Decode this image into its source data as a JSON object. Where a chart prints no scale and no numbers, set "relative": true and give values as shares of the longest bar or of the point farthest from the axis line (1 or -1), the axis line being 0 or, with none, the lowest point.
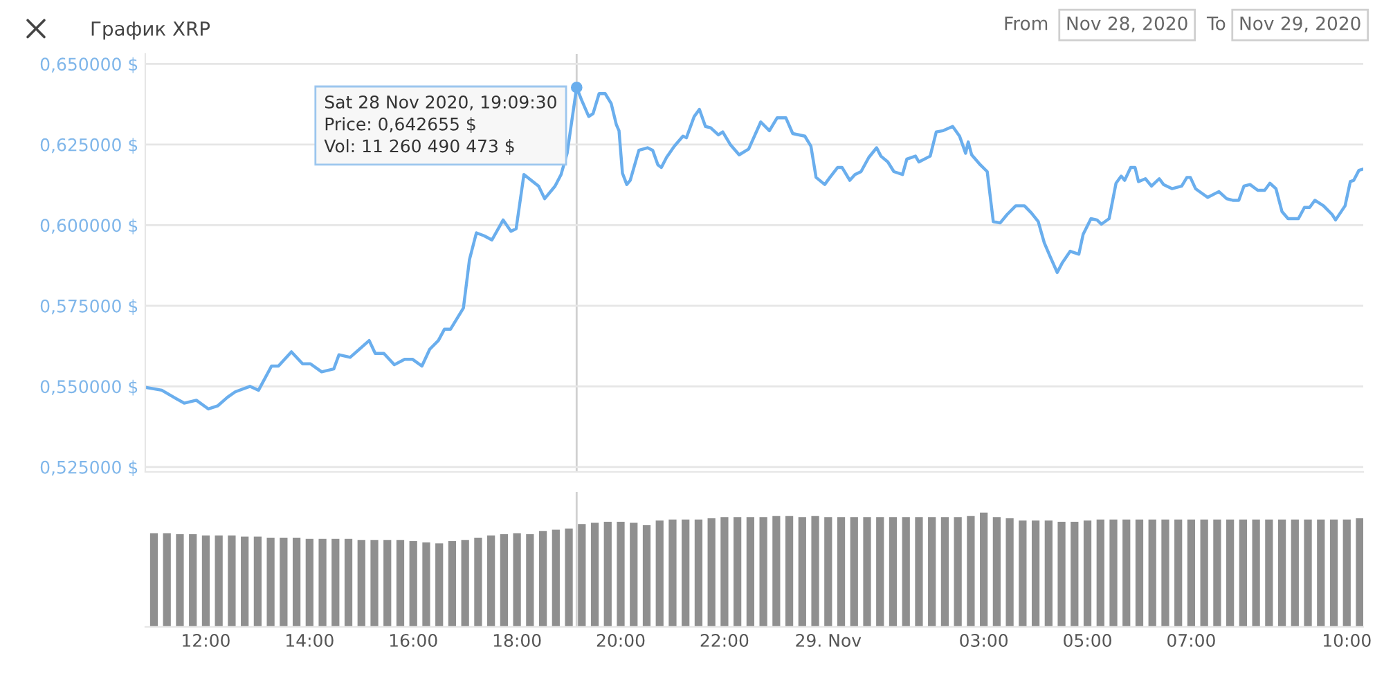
{
  "chart_data": [
    {
      "type": "line",
      "title": "График XRP",
      "annotations": [
        "From",
        "Nov 28, 2020",
        "To",
        "Nov 29, 2020",
        {
          "text": "Sat 28 Nov 2020, 19:09:30\nPrice: 0,642655 $\nVol: 11 260 490 473 $",
          "x": "2020-11-28T19:09",
          "y": 0.6427
        }
      ],
      "series": [
        {
          "color": "#6aaeed",
          "x": [
            "2020-11-28T10:50",
            "2020-11-28T11:09",
            "2020-11-28T11:23",
            "2020-11-28T11:35",
            "2020-11-28T11:49",
            "2020-11-28T12:03",
            "2020-11-28T12:14",
            "2020-11-28T12:25",
            "2020-11-28T12:34",
            "2020-11-28T12:51",
            "2020-11-28T13:01",
            "2020-11-28T13:16",
            "2020-11-28T13:24",
            "2020-11-28T13:39",
            "2020-11-28T13:52",
            "2020-11-28T14:01",
            "2020-11-28T14:14",
            "2020-11-28T14:28",
            "2020-11-28T14:34",
            "2020-11-28T14:47",
            "2020-11-28T15:09",
            "2020-11-28T15:16",
            "2020-11-28T15:26",
            "2020-11-28T15:38",
            "2020-11-28T15:50",
            "2020-11-28T15:59",
            "2020-11-28T16:10",
            "2020-11-28T16:19",
            "2020-11-28T16:29",
            "2020-11-28T16:36",
            "2020-11-28T16:43",
            "2020-11-28T16:58",
            "2020-11-28T17:05",
            "2020-11-28T17:13",
            "2020-11-28T17:22",
            "2020-11-28T17:31",
            "2020-11-28T17:44",
            "2020-11-28T17:53",
            "2020-11-28T17:59",
            "2020-11-28T18:08",
            "2020-11-28T18:25",
            "2020-11-28T18:32",
            "2020-11-28T18:44",
            "2020-11-28T18:51",
            "2020-11-28T18:58",
            "2020-11-28T19:09",
            "2020-11-28T19:15",
            "2020-11-28T19:23",
            "2020-11-28T19:28",
            "2020-11-28T19:35",
            "2020-11-28T19:42",
            "2020-11-28T19:49",
            "2020-11-28T19:55",
            "2020-11-28T19:58",
            "2020-11-28T20:02",
            "2020-11-28T20:07",
            "2020-11-28T20:11",
            "2020-11-28T20:21",
            "2020-11-28T20:31",
            "2020-11-28T20:37",
            "2020-11-28T20:43",
            "2020-11-28T20:47",
            "2020-11-28T20:53",
            "2020-11-28T21:02",
            "2020-11-28T21:12",
            "2020-11-28T21:16",
            "2020-11-28T21:25",
            "2020-11-28T21:31",
            "2020-11-28T21:38",
            "2020-11-28T21:44",
            "2020-11-28T21:53",
            "2020-11-28T21:58",
            "2020-11-28T22:07",
            "2020-11-28T22:17",
            "2020-11-28T22:28",
            "2020-11-28T22:42",
            "2020-11-28T22:52",
            "2020-11-28T23:01",
            "2020-11-28T23:11",
            "2020-11-28T23:19",
            "2020-11-28T23:33",
            "2020-11-28T23:40",
            "2020-11-28T23:46",
            "2020-11-28T23:56",
            "2020-11-29T00:02",
            "2020-11-29T00:11",
            "2020-11-29T00:16",
            "2020-11-29T00:25",
            "2020-11-29T00:31",
            "2020-11-29T00:38",
            "2020-11-29T00:47",
            "2020-11-29T00:56",
            "2020-11-29T01:01",
            "2020-11-29T01:09",
            "2020-11-29T01:16",
            "2020-11-29T01:26",
            "2020-11-29T01:31",
            "2020-11-29T01:41",
            "2020-11-29T01:45",
            "2020-11-29T01:58",
            "2020-11-29T02:05",
            "2020-11-29T02:13",
            "2020-11-29T02:24",
            "2020-11-29T02:32",
            "2020-11-29T02:39",
            "2020-11-29T02:42",
            "2020-11-29T02:46",
            "2020-11-29T02:56",
            "2020-11-29T03:04",
            "2020-11-29T03:11",
            "2020-11-29T03:19",
            "2020-11-29T03:27",
            "2020-11-29T03:37",
            "2020-11-29T03:47",
            "2020-11-29T03:55",
            "2020-11-29T04:03",
            "2020-11-29T04:10",
            "2020-11-29T04:17",
            "2020-11-29T04:25",
            "2020-11-29T04:31",
            "2020-11-29T04:40",
            "2020-11-29T04:50",
            "2020-11-29T04:55",
            "2020-11-29T05:04",
            "2020-11-29T05:11",
            "2020-11-29T05:16",
            "2020-11-29T05:25",
            "2020-11-29T05:33",
            "2020-11-29T05:39",
            "2020-11-29T05:43",
            "2020-11-29T05:50",
            "2020-11-29T05:55",
            "2020-11-29T05:59",
            "2020-11-29T06:07",
            "2020-11-29T06:14",
            "2020-11-29T06:23",
            "2020-11-29T06:28",
            "2020-11-29T06:38",
            "2020-11-29T06:49",
            "2020-11-29T06:55",
            "2020-11-29T06:59",
            "2020-11-29T07:05",
            "2020-11-29T07:19",
            "2020-11-29T07:32",
            "2020-11-29T07:41",
            "2020-11-29T07:48",
            "2020-11-29T07:55",
            "2020-11-29T08:01",
            "2020-11-29T08:08",
            "2020-11-29T08:17",
            "2020-11-29T08:25",
            "2020-11-29T08:31",
            "2020-11-29T08:38",
            "2020-11-29T08:45",
            "2020-11-29T08:52",
            "2020-11-29T09:04",
            "2020-11-29T09:11",
            "2020-11-29T09:17",
            "2020-11-29T09:23",
            "2020-11-29T09:33",
            "2020-11-29T09:43",
            "2020-11-29T09:47",
            "2020-11-29T09:58",
            "2020-11-29T10:04",
            "2020-11-29T10:08",
            "2020-11-29T10:14",
            "2020-11-29T10:19"
          ],
          "values": [
            0.5497,
            0.5488,
            0.5466,
            0.5448,
            0.5457,
            0.543,
            0.544,
            0.5466,
            0.5483,
            0.55,
            0.5488,
            0.5563,
            0.5563,
            0.5607,
            0.557,
            0.557,
            0.5545,
            0.5554,
            0.5598,
            0.559,
            0.5642,
            0.5602,
            0.5602,
            0.5567,
            0.5584,
            0.5584,
            0.5563,
            0.5615,
            0.5642,
            0.5677,
            0.5677,
            0.5743,
            0.5893,
            0.5976,
            0.5967,
            0.5954,
            0.6016,
            0.5981,
            0.5989,
            0.6157,
            0.6121,
            0.6082,
            0.6121,
            0.6157,
            0.6223,
            0.6427,
            0.6386,
            0.6337,
            0.6346,
            0.6408,
            0.6408,
            0.6377,
            0.6311,
            0.6293,
            0.6161,
            0.6126,
            0.6139,
            0.6232,
            0.624,
            0.6232,
            0.6187,
            0.6179,
            0.621,
            0.6245,
            0.6276,
            0.6271,
            0.6337,
            0.6359,
            0.6306,
            0.6302,
            0.628,
            0.6289,
            0.6249,
            0.6218,
            0.6236,
            0.632,
            0.6293,
            0.6333,
            0.6333,
            0.6284,
            0.6276,
            0.6245,
            0.6148,
            0.6126,
            0.6148,
            0.6179,
            0.6179,
            0.6139,
            0.6157,
            0.6166,
            0.621,
            0.624,
            0.6214,
            0.6196,
            0.6166,
            0.6157,
            0.6205,
            0.6214,
            0.6196,
            0.6214,
            0.6289,
            0.6293,
            0.6306,
            0.6276,
            0.6223,
            0.6258,
            0.6218,
            0.6187,
            0.6166,
            0.6011,
            0.6007,
            0.6033,
            0.606,
            0.606,
            0.6038,
            0.6011,
            0.5945,
            0.5901,
            0.5853,
            0.5884,
            0.5919,
            0.591,
            0.5972,
            0.602,
            0.6016,
            0.6003,
            0.602,
            0.613,
            0.6152,
            0.6139,
            0.6179,
            0.6179,
            0.6135,
            0.6144,
            0.6121,
            0.6144,
            0.6126,
            0.6113,
            0.6121,
            0.6148,
            0.6148,
            0.6113,
            0.6086,
            0.6104,
            0.6082,
            0.6077,
            0.6077,
            0.6121,
            0.6126,
            0.6108,
            0.6108,
            0.613,
            0.6113,
            0.6042,
            0.602,
            0.602,
            0.6055,
            0.6055,
            0.6077,
            0.606,
            0.6033,
            0.6016,
            0.606,
            0.6135,
            0.6139,
            0.617,
            0.6174
          ]
        }
      ],
      "xlim": [
        "2020-11-28T10:50",
        "2020-11-29T10:19"
      ],
      "ylim": [
        0.5235,
        0.6531
      ],
      "yticks": [
        {
          "value": 0.525,
          "label": "0,525000 $"
        },
        {
          "value": 0.55,
          "label": "0,550000 $"
        },
        {
          "value": 0.575,
          "label": "0,575000 $"
        },
        {
          "value": 0.6,
          "label": "0,600000 $"
        },
        {
          "value": 0.625,
          "label": "0,625000 $"
        },
        {
          "value": 0.65,
          "label": "0,650000 $"
        }
      ],
      "ref_lines": [
        {
          "axis": "x",
          "value": "2020-11-28T19:09",
          "color": "#d0d0d0"
        }
      ],
      "grid": "y",
      "tick_labels": "y",
      "marker": "none",
      "line_style": "solid"
    },
    {
      "type": "bar",
      "relative": true,
      "tick_labels": "x",
      "x": [
        "2020-11-28T11:00",
        "2020-11-28T11:15",
        "2020-11-28T11:30",
        "2020-11-28T11:45",
        "2020-11-28T12:00",
        "2020-11-28T12:15",
        "2020-11-28T12:30",
        "2020-11-28T12:45",
        "2020-11-28T13:00",
        "2020-11-28T13:15",
        "2020-11-28T13:30",
        "2020-11-28T13:45",
        "2020-11-28T14:00",
        "2020-11-28T14:15",
        "2020-11-28T14:30",
        "2020-11-28T14:45",
        "2020-11-28T15:00",
        "2020-11-28T15:15",
        "2020-11-28T15:30",
        "2020-11-28T15:45",
        "2020-11-28T16:00",
        "2020-11-28T16:15",
        "2020-11-28T16:30",
        "2020-11-28T16:45",
        "2020-11-28T17:00",
        "2020-11-28T17:15",
        "2020-11-28T17:30",
        "2020-11-28T17:45",
        "2020-11-28T18:00",
        "2020-11-28T18:15",
        "2020-11-28T18:30",
        "2020-11-28T18:45",
        "2020-11-28T19:00",
        "2020-11-28T19:15",
        "2020-11-28T19:30",
        "2020-11-28T19:45",
        "2020-11-28T20:00",
        "2020-11-28T20:15",
        "2020-11-28T20:30",
        "2020-11-28T20:45",
        "2020-11-28T21:00",
        "2020-11-28T21:15",
        "2020-11-28T21:30",
        "2020-11-28T21:45",
        "2020-11-28T22:00",
        "2020-11-28T22:15",
        "2020-11-28T22:30",
        "2020-11-28T22:45",
        "2020-11-28T23:00",
        "2020-11-28T23:15",
        "2020-11-28T23:30",
        "2020-11-28T23:45",
        "2020-11-29T00:00",
        "2020-11-29T00:15",
        "2020-11-29T00:30",
        "2020-11-29T00:45",
        "2020-11-29T01:00",
        "2020-11-29T01:15",
        "2020-11-29T01:30",
        "2020-11-29T01:45",
        "2020-11-29T02:00",
        "2020-11-29T02:15",
        "2020-11-29T02:30",
        "2020-11-29T02:45",
        "2020-11-29T03:00",
        "2020-11-29T03:15",
        "2020-11-29T03:30",
        "2020-11-29T03:45",
        "2020-11-29T04:00",
        "2020-11-29T04:15",
        "2020-11-29T04:30",
        "2020-11-29T04:45",
        "2020-11-29T05:00",
        "2020-11-29T05:15",
        "2020-11-29T05:30",
        "2020-11-29T05:45",
        "2020-11-29T06:00",
        "2020-11-29T06:15",
        "2020-11-29T06:30",
        "2020-11-29T06:45",
        "2020-11-29T07:00",
        "2020-11-29T07:15",
        "2020-11-29T07:30",
        "2020-11-29T07:45",
        "2020-11-29T08:00",
        "2020-11-29T08:15",
        "2020-11-29T08:30",
        "2020-11-29T08:45",
        "2020-11-29T09:00",
        "2020-11-29T09:15",
        "2020-11-29T09:30",
        "2020-11-29T09:45",
        "2020-11-29T10:00",
        "2020-11-29T10:15"
      ],
      "values": [
        0.82,
        0.82,
        0.81,
        0.81,
        0.8,
        0.8,
        0.8,
        0.79,
        0.79,
        0.78,
        0.78,
        0.78,
        0.77,
        0.77,
        0.77,
        0.77,
        0.76,
        0.76,
        0.76,
        0.76,
        0.75,
        0.74,
        0.73,
        0.75,
        0.76,
        0.78,
        0.8,
        0.81,
        0.82,
        0.81,
        0.84,
        0.85,
        0.86,
        0.9,
        0.91,
        0.92,
        0.92,
        0.91,
        0.89,
        0.93,
        0.94,
        0.94,
        0.94,
        0.95,
        0.96,
        0.96,
        0.96,
        0.96,
        0.97,
        0.97,
        0.96,
        0.97,
        0.96,
        0.96,
        0.96,
        0.96,
        0.96,
        0.96,
        0.96,
        0.96,
        0.96,
        0.96,
        0.96,
        0.97,
        1.0,
        0.96,
        0.95,
        0.93,
        0.93,
        0.93,
        0.92,
        0.92,
        0.93,
        0.94,
        0.94,
        0.94,
        0.94,
        0.94,
        0.94,
        0.94,
        0.94,
        0.94,
        0.94,
        0.94,
        0.94,
        0.94,
        0.94,
        0.94,
        0.94,
        0.94,
        0.94,
        0.94,
        0.94,
        0.95
      ],
      "color": "#8f8f8f",
      "xlim": [
        "2020-11-28T10:50",
        "2020-11-29T10:19"
      ],
      "xticks": [
        {
          "value": "2020-11-28T12:00",
          "label": "12:00"
        },
        {
          "value": "2020-11-28T14:00",
          "label": "14:00"
        },
        {
          "value": "2020-11-28T16:00",
          "label": "16:00"
        },
        {
          "value": "2020-11-28T18:00",
          "label": "18:00"
        },
        {
          "value": "2020-11-28T20:00",
          "label": "20:00"
        },
        {
          "value": "2020-11-28T22:00",
          "label": "22:00"
        },
        {
          "value": "2020-11-29T00:00",
          "label": "29. Nov"
        },
        {
          "value": "2020-11-29T03:00",
          "label": "03:00"
        },
        {
          "value": "2020-11-29T05:00",
          "label": "05:00"
        },
        {
          "value": "2020-11-29T07:00",
          "label": "07:00"
        },
        {
          "value": "2020-11-29T10:00",
          "label": "10:00"
        }
      ],
      "ref_lines": [
        {
          "axis": "x",
          "value": "2020-11-28T19:09",
          "color": "#d0d0d0"
        }
      ],
      "grid": false
    }
  ]
}
